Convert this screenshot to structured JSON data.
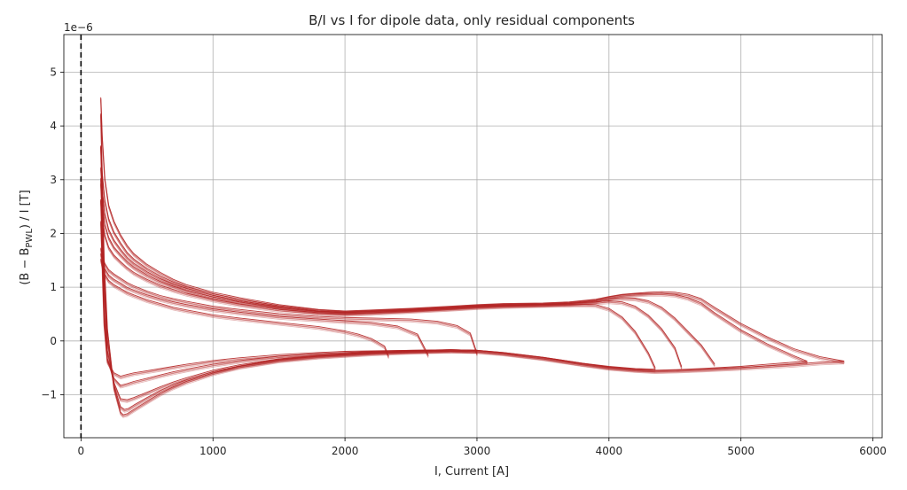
{
  "chart_data": {
    "type": "line",
    "title": "B/I vs I for dipole data, only residual components",
    "xlabel": "I, Current   [A]",
    "ylabel": "(B − B_PWL) / I   [T]",
    "ylabel_parts": {
      "pre": "(B  − B",
      "sub": "PWL",
      "post": ") / I   [T]"
    },
    "y_offset_label": "1e−6",
    "xlim": [
      -130,
      6070
    ],
    "ylim": [
      -1.8,
      5.7
    ],
    "xticks": [
      0,
      1000,
      2000,
      3000,
      4000,
      5000,
      6000
    ],
    "xtick_labels": [
      "0",
      "1000",
      "2000",
      "3000",
      "4000",
      "5000",
      "6000"
    ],
    "yticks": [
      -1,
      0,
      1,
      2,
      3,
      4,
      5
    ],
    "ytick_labels": [
      "−1",
      "0",
      "1",
      "2",
      "3",
      "4",
      "5"
    ],
    "grid": true,
    "line_color": "#b22222",
    "vertical_reference": {
      "x": 0,
      "style": "dashed",
      "color": "#000000"
    },
    "series": [
      {
        "x": [
          150,
          160,
          180,
          210,
          250,
          300,
          350,
          400,
          500,
          600,
          700,
          800,
          1000,
          1200,
          1500,
          1800,
          2000,
          2200,
          2500,
          2800,
          3000,
          3200,
          3500,
          3700,
          3900,
          4000,
          4100,
          4200,
          4300,
          4400,
          4500,
          4600,
          4700,
          4800,
          5000,
          5200,
          5400,
          5600,
          5780
        ],
        "y": [
          4.5,
          3.8,
          3.0,
          2.5,
          2.2,
          1.95,
          1.75,
          1.6,
          1.4,
          1.25,
          1.12,
          1.02,
          0.88,
          0.78,
          0.65,
          0.56,
          0.53,
          0.55,
          0.58,
          0.62,
          0.65,
          0.67,
          0.68,
          0.7,
          0.75,
          0.8,
          0.84,
          0.86,
          0.88,
          0.89,
          0.88,
          0.84,
          0.76,
          0.6,
          0.3,
          0.05,
          -0.17,
          -0.32,
          -0.4
        ]
      },
      {
        "x": [
          150,
          160,
          180,
          210,
          250,
          300,
          350,
          400,
          500,
          600,
          700,
          800,
          1000,
          1200,
          1500,
          1800,
          2000,
          2200,
          2500,
          2800,
          3000,
          3200,
          3500,
          3700,
          3900,
          4000,
          4100,
          4200,
          4300,
          4400,
          4500,
          4600,
          4700,
          4800,
          5000,
          5200,
          5400,
          5500
        ],
        "y": [
          3.6,
          3.1,
          2.6,
          2.25,
          2.0,
          1.8,
          1.62,
          1.5,
          1.32,
          1.18,
          1.07,
          0.98,
          0.85,
          0.75,
          0.63,
          0.55,
          0.52,
          0.54,
          0.57,
          0.61,
          0.64,
          0.66,
          0.67,
          0.69,
          0.74,
          0.79,
          0.83,
          0.85,
          0.86,
          0.86,
          0.84,
          0.78,
          0.68,
          0.5,
          0.18,
          -0.08,
          -0.3,
          -0.4
        ]
      },
      {
        "x": [
          150,
          160,
          180,
          210,
          250,
          300,
          350,
          400,
          500,
          600,
          700,
          800,
          1000,
          1200,
          1500,
          1800,
          2000,
          2200,
          2500,
          2800,
          3000,
          3200,
          3500,
          3700,
          3900,
          4000,
          4100,
          4200,
          4300,
          4400,
          4500,
          4600,
          4700,
          4800
        ],
        "y": [
          3.2,
          2.8,
          2.35,
          2.05,
          1.85,
          1.68,
          1.53,
          1.42,
          1.26,
          1.13,
          1.03,
          0.95,
          0.82,
          0.72,
          0.61,
          0.53,
          0.51,
          0.53,
          0.56,
          0.6,
          0.63,
          0.65,
          0.66,
          0.68,
          0.72,
          0.76,
          0.78,
          0.77,
          0.72,
          0.6,
          0.4,
          0.15,
          -0.1,
          -0.45
        ]
      },
      {
        "x": [
          150,
          160,
          180,
          210,
          250,
          300,
          350,
          400,
          500,
          600,
          700,
          800,
          1000,
          1200,
          1500,
          1800,
          2000,
          2200,
          2500,
          2800,
          3000,
          3200,
          3500,
          3700,
          3900,
          4000,
          4100,
          4200,
          4300,
          4400,
          4500,
          4550
        ],
        "y": [
          2.9,
          2.55,
          2.15,
          1.9,
          1.72,
          1.58,
          1.45,
          1.35,
          1.2,
          1.08,
          0.99,
          0.91,
          0.79,
          0.7,
          0.59,
          0.52,
          0.5,
          0.52,
          0.55,
          0.59,
          0.62,
          0.64,
          0.66,
          0.67,
          0.7,
          0.72,
          0.7,
          0.62,
          0.45,
          0.2,
          -0.15,
          -0.5
        ]
      },
      {
        "x": [
          150,
          160,
          180,
          210,
          250,
          300,
          350,
          400,
          500,
          600,
          700,
          800,
          1000,
          1200,
          1500,
          1800,
          2000,
          2200,
          2500,
          2800,
          3000,
          3200,
          3500,
          3700,
          3900,
          4000,
          4100,
          4200,
          4300,
          4350
        ],
        "y": [
          2.6,
          2.3,
          1.95,
          1.72,
          1.57,
          1.45,
          1.34,
          1.25,
          1.12,
          1.01,
          0.93,
          0.86,
          0.75,
          0.66,
          0.56,
          0.5,
          0.48,
          0.5,
          0.54,
          0.58,
          0.61,
          0.63,
          0.65,
          0.66,
          0.65,
          0.58,
          0.42,
          0.15,
          -0.25,
          -0.52
        ]
      },
      {
        "x": [
          150,
          160,
          180,
          210,
          250,
          300,
          350,
          400,
          500,
          600,
          700,
          800,
          1000,
          1200,
          1500,
          1800,
          2000,
          2100,
          2200,
          2300,
          2330
        ],
        "y": [
          1.5,
          1.38,
          1.22,
          1.1,
          1.02,
          0.95,
          0.88,
          0.83,
          0.74,
          0.67,
          0.6,
          0.55,
          0.46,
          0.4,
          0.32,
          0.24,
          0.16,
          0.1,
          0.02,
          -0.12,
          -0.3
        ]
      },
      {
        "x": [
          150,
          160,
          180,
          210,
          250,
          300,
          350,
          400,
          500,
          600,
          700,
          800,
          1000,
          1200,
          1500,
          1800,
          2000,
          2200,
          2400,
          2550,
          2630
        ],
        "y": [
          1.6,
          1.48,
          1.32,
          1.2,
          1.12,
          1.05,
          0.97,
          0.92,
          0.83,
          0.76,
          0.7,
          0.65,
          0.57,
          0.51,
          0.43,
          0.38,
          0.35,
          0.32,
          0.25,
          0.1,
          -0.28
        ]
      },
      {
        "x": [
          150,
          160,
          180,
          210,
          250,
          300,
          350,
          400,
          500,
          600,
          700,
          800,
          1000,
          1200,
          1500,
          1800,
          2000,
          2200,
          2500,
          2700,
          2850,
          2950,
          3000
        ],
        "y": [
          1.7,
          1.58,
          1.42,
          1.3,
          1.22,
          1.14,
          1.06,
          1.0,
          0.9,
          0.82,
          0.76,
          0.71,
          0.62,
          0.56,
          0.48,
          0.43,
          0.41,
          0.4,
          0.38,
          0.34,
          0.26,
          0.12,
          -0.25
        ]
      },
      {
        "x": [
          150,
          175,
          200,
          250,
          300,
          320,
          350,
          400,
          500,
          600,
          700,
          800,
          1000,
          1200,
          1500,
          1800,
          2000,
          2200,
          2500,
          2800,
          3000,
          3200,
          3500,
          3800,
          4000,
          4200,
          4350,
          4500,
          4700,
          5000,
          5200,
          5400,
          5600,
          5780
        ],
        "y": [
          4.2,
          1.5,
          0.2,
          -0.9,
          -1.35,
          -1.4,
          -1.38,
          -1.3,
          -1.15,
          -1.0,
          -0.88,
          -0.78,
          -0.62,
          -0.5,
          -0.38,
          -0.31,
          -0.28,
          -0.25,
          -0.22,
          -0.2,
          -0.21,
          -0.25,
          -0.34,
          -0.45,
          -0.52,
          -0.56,
          -0.58,
          -0.57,
          -0.55,
          -0.52,
          -0.49,
          -0.46,
          -0.42,
          -0.4
        ]
      },
      {
        "x": [
          150,
          175,
          200,
          250,
          300,
          330,
          360,
          400,
          500,
          600,
          700,
          800,
          1000,
          1200,
          1500,
          1800,
          2000,
          2200,
          2500,
          2800,
          3000,
          3200,
          3500,
          3800,
          4000,
          4200,
          4350,
          4500,
          4700,
          5000,
          5200,
          5500
        ],
        "y": [
          3.6,
          1.2,
          0.0,
          -0.85,
          -1.25,
          -1.3,
          -1.28,
          -1.22,
          -1.08,
          -0.95,
          -0.84,
          -0.75,
          -0.6,
          -0.49,
          -0.37,
          -0.3,
          -0.27,
          -0.24,
          -0.21,
          -0.19,
          -0.2,
          -0.24,
          -0.33,
          -0.44,
          -0.51,
          -0.55,
          -0.57,
          -0.56,
          -0.54,
          -0.5,
          -0.46,
          -0.4
        ]
      },
      {
        "x": [
          150,
          175,
          200,
          250,
          300,
          350,
          400,
          500,
          600,
          700,
          800,
          1000,
          1200,
          1500,
          1800,
          2000,
          2200,
          2500,
          2800,
          3000,
          3200,
          3500,
          3800,
          4000,
          4200,
          4350
        ],
        "y": [
          3.0,
          0.9,
          -0.2,
          -0.8,
          -1.1,
          -1.12,
          -1.08,
          -0.98,
          -0.88,
          -0.79,
          -0.71,
          -0.57,
          -0.47,
          -0.36,
          -0.29,
          -0.26,
          -0.23,
          -0.21,
          -0.19,
          -0.2,
          -0.24,
          -0.33,
          -0.44,
          -0.5,
          -0.54,
          -0.55
        ]
      },
      {
        "x": [
          150,
          175,
          200,
          250,
          300,
          350,
          400,
          500,
          600,
          700,
          800,
          1000,
          1200,
          1500,
          1800,
          2000,
          2200,
          2500,
          2800,
          3000
        ],
        "y": [
          2.6,
          0.5,
          -0.35,
          -0.72,
          -0.85,
          -0.82,
          -0.78,
          -0.72,
          -0.66,
          -0.6,
          -0.55,
          -0.46,
          -0.39,
          -0.31,
          -0.26,
          -0.24,
          -0.22,
          -0.2,
          -0.19,
          -0.2
        ]
      },
      {
        "x": [
          150,
          175,
          200,
          250,
          300,
          350,
          400,
          500,
          600,
          700,
          800,
          1000,
          1200,
          1500,
          1800,
          2000,
          2200,
          2500,
          2800,
          3000
        ],
        "y": [
          2.2,
          0.3,
          -0.4,
          -0.62,
          -0.68,
          -0.65,
          -0.62,
          -0.58,
          -0.54,
          -0.5,
          -0.46,
          -0.39,
          -0.34,
          -0.28,
          -0.24,
          -0.22,
          -0.21,
          -0.2,
          -0.19,
          -0.2
        ]
      }
    ]
  }
}
